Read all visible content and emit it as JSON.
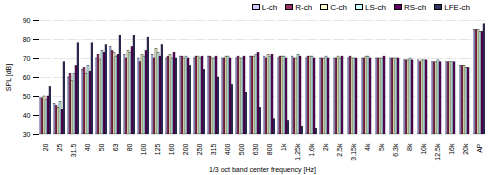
{
  "chart_data": {
    "type": "bar",
    "x_label": "1/3 oct band center frequency [Hz]",
    "y_label": "SPL [dB]",
    "categories": [
      "20",
      "25",
      "31.5",
      "40",
      "50",
      "63",
      "80",
      "100",
      "125",
      "160",
      "200",
      "250",
      "315",
      "400",
      "500",
      "630",
      "800",
      "1k",
      "1.25k",
      "1.6k",
      "2k",
      "2.5k",
      "3.15k",
      "4k",
      "5k",
      "6.3k",
      "8k",
      "10k",
      "12.5k",
      "16k",
      "20k",
      "AP"
    ],
    "series": [
      {
        "name": "L-ch",
        "color": "#ccccff",
        "values": [
          49,
          46,
          60,
          64,
          70,
          76,
          72,
          70,
          72,
          70,
          71,
          70,
          71,
          70,
          70,
          71,
          71,
          70,
          71,
          70,
          70,
          70,
          70,
          70,
          70,
          70,
          69,
          69,
          68,
          68,
          66,
          85
        ]
      },
      {
        "name": "R-ch",
        "color": "#993366",
        "values": [
          49,
          45,
          62,
          65,
          72,
          74,
          70,
          68,
          70,
          71,
          71,
          71,
          71,
          70,
          71,
          71,
          70,
          71,
          70,
          71,
          70,
          70,
          71,
          70,
          70,
          70,
          69,
          68,
          68,
          68,
          66,
          85
        ]
      },
      {
        "name": "C-ch",
        "color": "#ffffcc",
        "values": [
          50,
          44,
          58,
          62,
          69,
          73,
          74,
          72,
          75,
          72,
          70,
          71,
          70,
          71,
          70,
          71,
          72,
          71,
          70,
          71,
          70,
          71,
          70,
          71,
          70,
          70,
          69,
          69,
          68,
          68,
          66,
          85
        ]
      },
      {
        "name": "LS-ch",
        "color": "#ccffff",
        "values": [
          48,
          47,
          62,
          66,
          74,
          71,
          73,
          71,
          73,
          70,
          71,
          70,
          70,
          71,
          70,
          72,
          71,
          71,
          72,
          71,
          71,
          70,
          70,
          71,
          70,
          70,
          70,
          69,
          69,
          68,
          65,
          84
        ]
      },
      {
        "name": "RS-ch",
        "color": "#660066",
        "values": [
          50,
          43,
          66,
          63,
          73,
          72,
          76,
          74,
          71,
          73,
          70,
          71,
          71,
          70,
          71,
          73,
          72,
          70,
          71,
          70,
          70,
          71,
          70,
          70,
          71,
          70,
          69,
          69,
          68,
          68,
          65,
          84
        ]
      },
      {
        "name": "LFE-ch",
        "color": "#333366",
        "values": [
          55,
          68,
          78,
          78,
          77,
          82,
          82,
          81,
          77,
          70,
          66,
          64,
          60,
          56,
          52,
          44,
          38,
          37,
          34,
          33,
          null,
          null,
          null,
          null,
          null,
          null,
          null,
          null,
          null,
          null,
          null,
          88
        ]
      }
    ],
    "ylim": [
      30,
      90
    ],
    "yticks": [
      30,
      40,
      50,
      60,
      70,
      80,
      90
    ],
    "grid": true,
    "legend": "top-right"
  }
}
